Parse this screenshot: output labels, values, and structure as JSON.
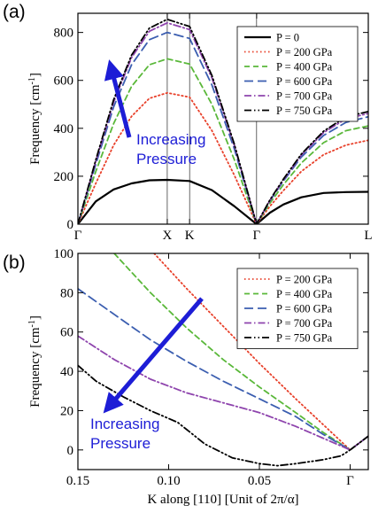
{
  "chart_data": [
    {
      "panel": "(a)",
      "type": "line",
      "ylabel": "Frequency [cm-1]",
      "ylabel_text": "Frequency [cm",
      "ylabel_sup": "-1",
      "ylabel_end": "]",
      "ylim": [
        0,
        880
      ],
      "yticks": [
        0,
        200,
        400,
        600,
        800
      ],
      "xlim": [
        0,
        3.25
      ],
      "xticks": [
        {
          "label": "Γ",
          "x": 0
        },
        {
          "label": "X",
          "x": 1.0
        },
        {
          "label": "K",
          "x": 1.25
        },
        {
          "label": "Γ",
          "x": 2.0
        },
        {
          "label": "L",
          "x": 3.25
        }
      ],
      "legend": "top-right",
      "annotation": {
        "line1": "Increasing",
        "line2": "Pressure"
      },
      "series": [
        {
          "name": "P = 0",
          "color": "#000000",
          "dash": "solid",
          "x": [
            0,
            0.2,
            0.4,
            0.6,
            0.8,
            1.0,
            1.25,
            1.5,
            1.75,
            2.0,
            2.15,
            2.3,
            2.5,
            2.75,
            3.0,
            3.25
          ],
          "y": [
            0,
            95,
            145,
            170,
            183,
            185,
            180,
            142,
            75,
            0,
            48,
            82,
            112,
            130,
            134,
            135
          ]
        },
        {
          "name": "P = 200 GPa",
          "color": "#e8402a",
          "dash": "dot",
          "x": [
            0,
            0.2,
            0.4,
            0.6,
            0.8,
            1.0,
            1.25,
            1.5,
            1.75,
            2.0,
            2.15,
            2.3,
            2.5,
            2.75,
            3.0,
            3.25
          ],
          "y": [
            0,
            170,
            330,
            450,
            525,
            548,
            530,
            390,
            205,
            0,
            75,
            140,
            220,
            290,
            330,
            350
          ]
        },
        {
          "name": "P = 400 GPa",
          "color": "#5ab83a",
          "dash": "dash",
          "x": [
            0,
            0.2,
            0.4,
            0.6,
            0.8,
            1.0,
            1.25,
            1.5,
            1.75,
            2.0,
            2.15,
            2.3,
            2.5,
            2.75,
            3.0,
            3.25
          ],
          "y": [
            0,
            220,
            420,
            575,
            665,
            690,
            668,
            500,
            270,
            0,
            88,
            165,
            255,
            340,
            390,
            410
          ]
        },
        {
          "name": "P = 600 GPa",
          "color": "#3b5eb0",
          "dash": "longdash",
          "x": [
            0,
            0.2,
            0.4,
            0.6,
            0.8,
            1.0,
            1.25,
            1.5,
            1.75,
            2.0,
            2.15,
            2.3,
            2.5,
            2.75,
            3.0,
            3.25
          ],
          "y": [
            0,
            250,
            490,
            665,
            770,
            800,
            775,
            580,
            315,
            0,
            98,
            180,
            280,
            370,
            425,
            448
          ]
        },
        {
          "name": "P = 700 GPa",
          "color": "#8e44ad",
          "dash": "dashdot",
          "x": [
            0,
            0.2,
            0.4,
            0.6,
            0.8,
            1.0,
            1.25,
            1.5,
            1.75,
            2.0,
            2.15,
            2.3,
            2.5,
            2.75,
            3.0,
            3.25
          ],
          "y": [
            0,
            262,
            510,
            695,
            805,
            840,
            812,
            610,
            330,
            0,
            100,
            185,
            288,
            382,
            440,
            462
          ]
        },
        {
          "name": "P = 750 GPa",
          "color": "#000000",
          "dash": "dashdotdot",
          "x": [
            0,
            0.2,
            0.4,
            0.6,
            0.8,
            1.0,
            1.25,
            1.5,
            1.75,
            2.0,
            2.15,
            2.3,
            2.5,
            2.75,
            3.0,
            3.25
          ],
          "y": [
            0,
            268,
            520,
            705,
            818,
            855,
            825,
            620,
            335,
            0,
            102,
            188,
            292,
            388,
            448,
            470
          ]
        }
      ]
    },
    {
      "panel": "(b)",
      "type": "line",
      "xlabel": "K along [110] [Unit of 2π/α]",
      "ylabel": "Frequency [cm-1]",
      "ylabel_text": "Frequency [cm",
      "ylabel_sup": "-1",
      "ylabel_end": "]",
      "ylim": [
        -10,
        100
      ],
      "yticks": [
        0,
        20,
        40,
        60,
        80,
        100
      ],
      "xlim": [
        0.15,
        -0.01
      ],
      "xticks": [
        {
          "label": "0.15",
          "x": 0.15
        },
        {
          "label": "0.10",
          "x": 0.1
        },
        {
          "label": "0.05",
          "x": 0.05
        },
        {
          "label": "Γ",
          "x": 0
        }
      ],
      "legend": "top-right",
      "annotation": {
        "line1": "Increasing",
        "line2": "Pressure"
      },
      "series": [
        {
          "name": "P = 200 GPa",
          "color": "#e8402a",
          "dash": "dot",
          "x": [
            0.108,
            0.09,
            0.07,
            0.05,
            0.03,
            0.015,
            0,
            -0.01
          ],
          "y": [
            100,
            82,
            63,
            44,
            26,
            13,
            0,
            7
          ]
        },
        {
          "name": "P = 400 GPa",
          "color": "#5ab83a",
          "dash": "dash",
          "x": [
            0.13,
            0.11,
            0.09,
            0.07,
            0.05,
            0.03,
            0.015,
            0,
            -0.01
          ],
          "y": [
            100,
            80,
            62,
            46,
            32,
            19,
            9,
            0,
            7
          ]
        },
        {
          "name": "P = 600 GPa",
          "color": "#3b5eb0",
          "dash": "longdash",
          "x": [
            0.15,
            0.13,
            0.11,
            0.09,
            0.07,
            0.05,
            0.03,
            0.015,
            0,
            -0.01
          ],
          "y": [
            82,
            69,
            56,
            45,
            35,
            26,
            17,
            8,
            0,
            7
          ]
        },
        {
          "name": "P = 700 GPa",
          "color": "#8e44ad",
          "dash": "dashdot",
          "x": [
            0.15,
            0.13,
            0.11,
            0.09,
            0.07,
            0.05,
            0.03,
            0.015,
            0,
            -0.01
          ],
          "y": [
            58,
            46,
            36,
            29,
            24,
            19,
            12,
            6,
            0,
            7
          ]
        },
        {
          "name": "P = 750 GPa",
          "color": "#000000",
          "dash": "dashdotdot",
          "x": [
            0.15,
            0.14,
            0.125,
            0.11,
            0.095,
            0.08,
            0.065,
            0.05,
            0.04,
            0.03,
            0.015,
            0.005,
            0,
            -0.01
          ],
          "y": [
            43,
            35,
            27,
            20,
            14,
            3,
            -4,
            -7,
            -8,
            -7,
            -5,
            -3,
            0,
            7
          ]
        }
      ]
    }
  ]
}
